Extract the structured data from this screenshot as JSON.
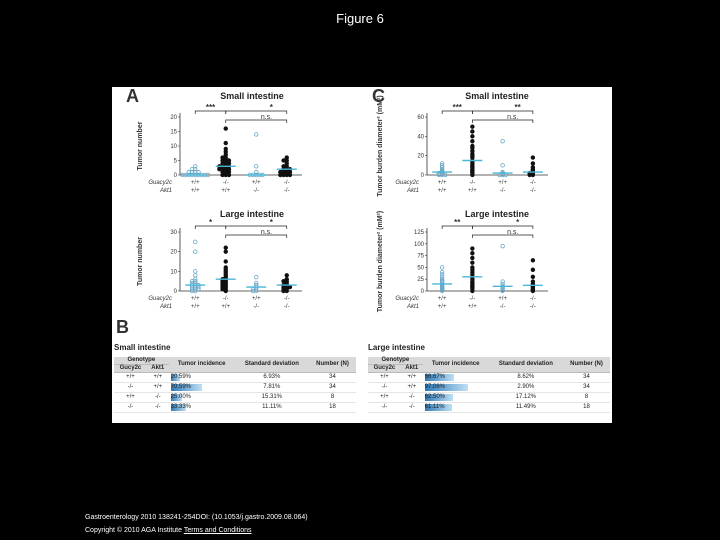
{
  "slide": {
    "title": "Figure 6"
  },
  "panels": {
    "a": "A",
    "b": "B",
    "c": "C"
  },
  "genotype_labels": {
    "guc": "Guacy2c",
    "akt": "Akt1"
  },
  "chart_data": [
    {
      "type": "scatter",
      "id": "A-small",
      "title": "Small intestine",
      "ylabel": "Tumor number",
      "ylim": [
        0,
        20
      ],
      "yticks": [
        0,
        5,
        10,
        15,
        20
      ],
      "categories": [
        {
          "guc": "+/+",
          "akt": "+/+"
        },
        {
          "guc": "-/-",
          "akt": "+/+"
        },
        {
          "guc": "+/+",
          "akt": "-/-"
        },
        {
          "guc": "-/-",
          "akt": "-/-"
        }
      ],
      "annotations": {
        "top": "***",
        "top_right": "*",
        "mid": "n.s."
      },
      "series": [
        {
          "name": "+/+ +/+",
          "open": true,
          "values": [
            0,
            0,
            0,
            1,
            0,
            2,
            1,
            0,
            0,
            1,
            0,
            2,
            0,
            0,
            3,
            1
          ]
        },
        {
          "name": "-/- +/+",
          "open": false,
          "values": [
            0,
            1,
            2,
            3,
            4,
            5,
            6,
            7,
            8,
            2,
            3,
            4,
            5,
            1,
            0,
            11,
            16,
            9,
            6,
            3,
            2,
            1,
            0,
            5,
            4,
            3,
            2
          ]
        },
        {
          "name": "+/+ -/-",
          "open": true,
          "values": [
            0,
            0,
            0,
            1,
            14,
            0,
            0,
            3
          ]
        },
        {
          "name": "-/- -/-",
          "open": false,
          "values": [
            0,
            1,
            2,
            3,
            5,
            6,
            1,
            0,
            2,
            0,
            1,
            4,
            3,
            5,
            0,
            2,
            1
          ]
        }
      ]
    },
    {
      "type": "scatter",
      "id": "A-large",
      "title": "Large intestine",
      "ylabel": "Tumor number",
      "ylim": [
        0,
        30
      ],
      "yticks": [
        0,
        10,
        20,
        30
      ],
      "categories": [
        {
          "guc": "+/+",
          "akt": "+/+"
        },
        {
          "guc": "-/-",
          "akt": "+/+"
        },
        {
          "guc": "+/+",
          "akt": "-/-"
        },
        {
          "guc": "-/-",
          "akt": "-/-"
        }
      ],
      "annotations": {
        "top": "*",
        "top_right": "*",
        "mid": "n.s."
      },
      "series": [
        {
          "name": "+/+ +/+",
          "open": true,
          "values": [
            0,
            1,
            2,
            3,
            4,
            5,
            1,
            2,
            3,
            0,
            6,
            8,
            10,
            20,
            25,
            2,
            4,
            5,
            3,
            1
          ]
        },
        {
          "name": "-/- +/+",
          "open": false,
          "values": [
            0,
            1,
            2,
            3,
            4,
            5,
            6,
            7,
            8,
            10,
            12,
            15,
            20,
            22,
            3,
            2,
            4,
            5,
            6,
            1,
            9,
            11
          ]
        },
        {
          "name": "+/+ -/-",
          "open": true,
          "values": [
            0,
            1,
            2,
            3,
            4,
            7,
            1,
            0
          ]
        },
        {
          "name": "-/- -/-",
          "open": false,
          "values": [
            0,
            1,
            2,
            3,
            5,
            6,
            8,
            4,
            2,
            1,
            3,
            0,
            2,
            5
          ]
        }
      ]
    },
    {
      "type": "scatter",
      "id": "C-small",
      "title": "Small intestine",
      "ylabel": "Tumor burden diameter² (mM²)",
      "ylim": [
        0,
        60
      ],
      "yticks": [
        0,
        20,
        40,
        60
      ],
      "categories": [
        {
          "guc": "+/+",
          "akt": "+/+"
        },
        {
          "guc": "-/-",
          "akt": "+/+"
        },
        {
          "guc": "+/+",
          "akt": "-/-"
        },
        {
          "guc": "-/-",
          "akt": "-/-"
        }
      ],
      "annotations": {
        "top": "***",
        "top_right": "**",
        "mid": "n.s."
      },
      "series": [
        {
          "name": "+/+ +/+",
          "open": true,
          "values": [
            0,
            1,
            2,
            3,
            5,
            8,
            10,
            12,
            0,
            1,
            4,
            2,
            0,
            6
          ]
        },
        {
          "name": "-/- +/+",
          "open": false,
          "values": [
            0,
            2,
            4,
            6,
            8,
            10,
            12,
            15,
            18,
            20,
            22,
            25,
            30,
            35,
            40,
            45,
            50,
            5,
            3,
            9,
            14,
            28
          ]
        },
        {
          "name": "+/+ -/-",
          "open": true,
          "values": [
            0,
            0,
            1,
            2,
            3,
            10,
            35,
            0
          ]
        },
        {
          "name": "-/- -/-",
          "open": false,
          "values": [
            0,
            1,
            2,
            5,
            8,
            12,
            18,
            3,
            6,
            0,
            2
          ]
        }
      ]
    },
    {
      "type": "scatter",
      "id": "C-large",
      "title": "Large intestine",
      "ylabel": "Tumor burden diameter² (mM²)",
      "ylim": [
        0,
        125
      ],
      "yticks": [
        0,
        25,
        50,
        75,
        100,
        125
      ],
      "categories": [
        {
          "guc": "+/+",
          "akt": "+/+"
        },
        {
          "guc": "-/-",
          "akt": "+/+"
        },
        {
          "guc": "+/+",
          "akt": "-/-"
        },
        {
          "guc": "-/-",
          "akt": "-/-"
        }
      ],
      "annotations": {
        "top": "**",
        "top_right": "*",
        "mid": "n.s."
      },
      "series": [
        {
          "name": "+/+ +/+",
          "open": true,
          "values": [
            0,
            2,
            5,
            8,
            10,
            12,
            15,
            20,
            25,
            30,
            35,
            40,
            50,
            3,
            6,
            9,
            18,
            22
          ]
        },
        {
          "name": "-/- +/+",
          "open": false,
          "values": [
            0,
            5,
            10,
            15,
            20,
            25,
            30,
            40,
            50,
            60,
            70,
            80,
            90,
            8,
            12,
            18,
            35,
            45
          ]
        },
        {
          "name": "+/+ -/-",
          "open": true,
          "values": [
            0,
            5,
            10,
            15,
            20,
            95,
            2,
            8
          ]
        },
        {
          "name": "-/- -/-",
          "open": false,
          "values": [
            0,
            5,
            10,
            15,
            20,
            30,
            45,
            65,
            3,
            8,
            12,
            2
          ]
        }
      ]
    }
  ],
  "tables": {
    "small": {
      "title": "Small intestine",
      "headers": {
        "genotype": "Genotype",
        "guc": "Gucy2c",
        "akt": "Akt1",
        "incidence": "Tumor incidence",
        "sd": "Standard deviation",
        "n": "Number (N)"
      },
      "rows": [
        {
          "guc": "+/+",
          "akt": "+/+",
          "inc": "20.59%",
          "inc_frac": 0.2059,
          "sd": "6.93%",
          "n": "34"
        },
        {
          "guc": "-/-",
          "akt": "+/+",
          "inc": "70.59%",
          "inc_frac": 0.7059,
          "sd": "7.81%",
          "n": "34"
        },
        {
          "guc": "+/+",
          "akt": "-/-",
          "inc": "25.00%",
          "inc_frac": 0.25,
          "sd": "15.31%",
          "n": "8"
        },
        {
          "guc": "-/-",
          "akt": "-/-",
          "inc": "33.33%",
          "inc_frac": 0.3333,
          "sd": "11.11%",
          "n": "18"
        }
      ]
    },
    "large": {
      "title": "Large intestine",
      "headers": {
        "genotype": "Genotype",
        "guc": "Gucy2c",
        "akt": "Akt1",
        "incidence": "Tumor incidence",
        "sd": "Standard deviation",
        "n": "Number (N)"
      },
      "rows": [
        {
          "guc": "+/+",
          "akt": "+/+",
          "inc": "66.67%",
          "inc_frac": 0.6667,
          "sd": "8.62%",
          "n": "34"
        },
        {
          "guc": "-/-",
          "akt": "+/+",
          "inc": "97.06%",
          "inc_frac": 0.9706,
          "sd": "2.90%",
          "n": "34"
        },
        {
          "guc": "+/+",
          "akt": "-/-",
          "inc": "62.50%",
          "inc_frac": 0.625,
          "sd": "17.12%",
          "n": "8"
        },
        {
          "guc": "-/-",
          "akt": "-/-",
          "inc": "61.11%",
          "inc_frac": 0.6111,
          "sd": "11.49%",
          "n": "18"
        }
      ]
    }
  },
  "footer": {
    "citation": "Gastroenterology 2010 138241-254DOI: (10.1053/j.gastro.2009.08.064)",
    "copyright": "Copyright © 2010 AGA Institute",
    "link": "Terms and Conditions"
  },
  "colors": {
    "open": "#6aa8c8",
    "filled": "#111111",
    "median": "#49b6d6",
    "bracket": "#222222",
    "bar": "#2f79b6"
  }
}
